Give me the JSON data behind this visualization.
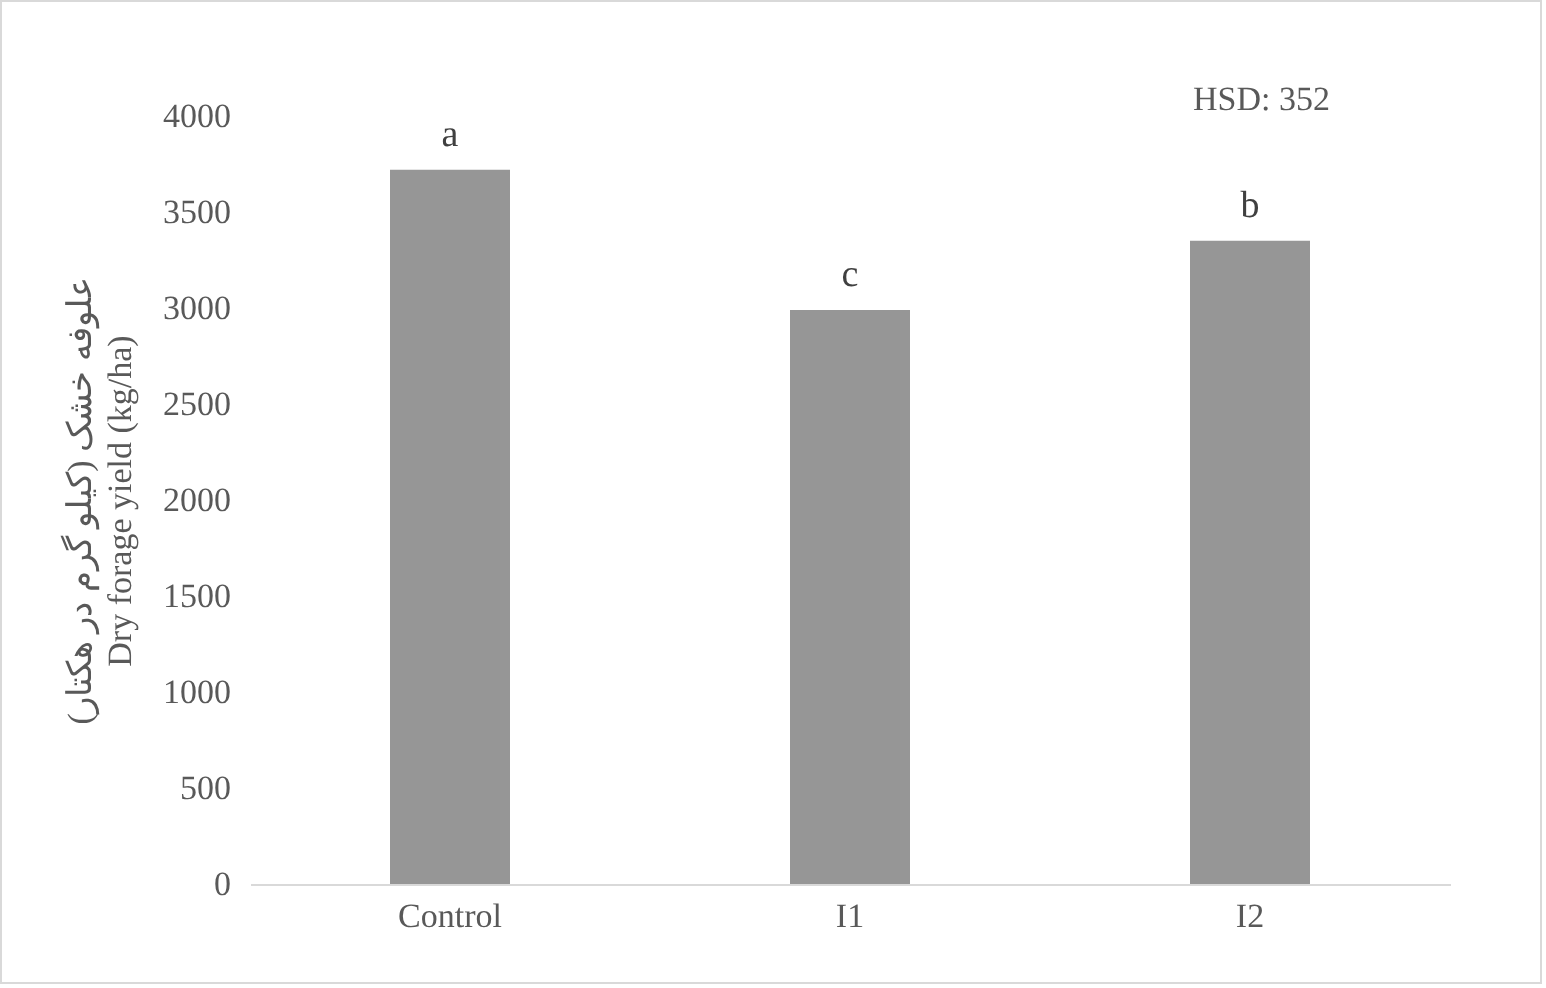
{
  "chart_data": {
    "type": "bar",
    "ylabel": "علوفه خشک (کیلو گرم در هکتار)\nDry forage yield (kg/ha)",
    "categories": [
      "Control",
      "I1",
      "I2"
    ],
    "values": [
      3720,
      2990,
      3350
    ],
    "color": "#969696",
    "ylim": [
      0,
      4000
    ],
    "yticks": [
      0,
      500,
      1000,
      1500,
      2000,
      2500,
      3000,
      3500,
      4000
    ],
    "grid": false,
    "annotations": [
      {
        "text": "a",
        "x": "Control",
        "y": 3720
      },
      {
        "text": "c",
        "x": "I1",
        "y": 2990
      },
      {
        "text": "b",
        "x": "I2",
        "y": 3350
      },
      "HSD: 352"
    ]
  }
}
